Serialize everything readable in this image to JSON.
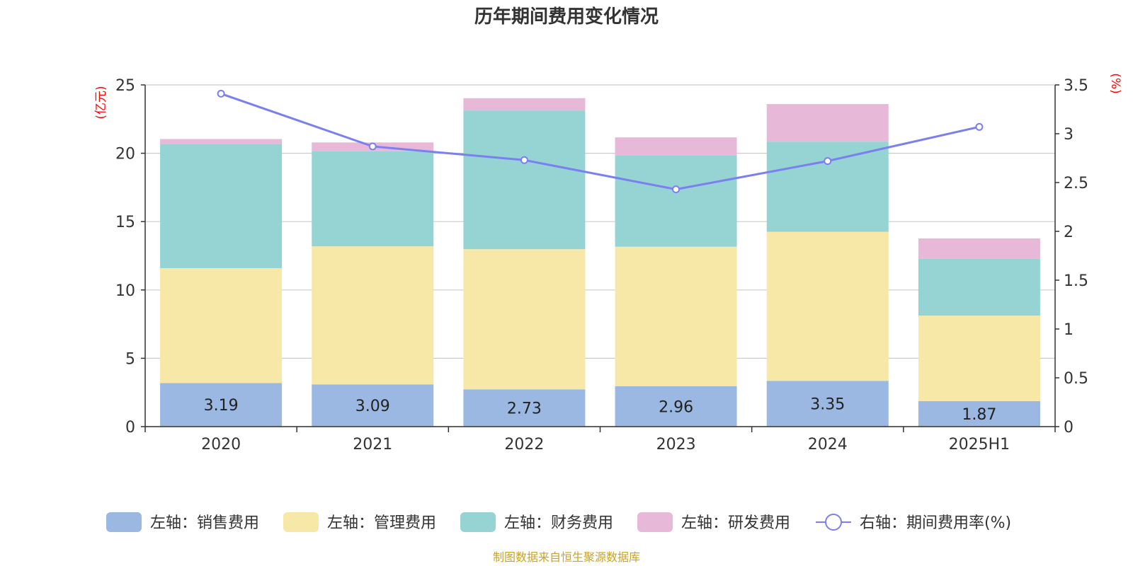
{
  "chart_data": {
    "type": "bar",
    "stacked": true,
    "title": "历年期间费用变化情况",
    "categories": [
      "2020",
      "2021",
      "2022",
      "2023",
      "2024",
      "2025H1"
    ],
    "left_axis": {
      "unit": "(亿元)",
      "ylim": [
        0,
        25
      ],
      "ticks": [
        "0",
        "5",
        "10",
        "15",
        "20",
        "25"
      ]
    },
    "right_axis": {
      "unit": "(%)",
      "ylim": [
        0,
        3.5
      ],
      "ticks": [
        "0",
        "0.5",
        "1",
        "1.5",
        "2",
        "2.5",
        "3",
        "3.5"
      ]
    },
    "series": [
      {
        "name": "左轴：销售费用",
        "color": "#9bb8e2",
        "values": [
          3.19,
          3.09,
          2.73,
          2.96,
          3.35,
          1.87
        ],
        "labels": [
          "3.19",
          "3.09",
          "2.73",
          "2.96",
          "3.35",
          "1.87"
        ]
      },
      {
        "name": "左轴：管理费用",
        "color": "#f8e8a8",
        "values": [
          8.4,
          10.1,
          10.25,
          10.2,
          10.9,
          6.25
        ]
      },
      {
        "name": "左轴：财务费用",
        "color": "#96d4d4",
        "values": [
          9.1,
          6.95,
          10.15,
          6.7,
          6.6,
          4.15
        ]
      },
      {
        "name": "左轴：研发费用",
        "color": "#e8b8d8",
        "values": [
          0.35,
          0.65,
          0.9,
          1.3,
          2.75,
          1.5
        ]
      }
    ],
    "line": {
      "name": "右轴：期间费用率(%)",
      "color": "#7b7ff0",
      "values": [
        3.41,
        2.87,
        2.73,
        2.43,
        2.72,
        3.07
      ]
    },
    "grid": true,
    "legend": "bottom"
  },
  "source": "制图数据来自恒生聚源数据库"
}
